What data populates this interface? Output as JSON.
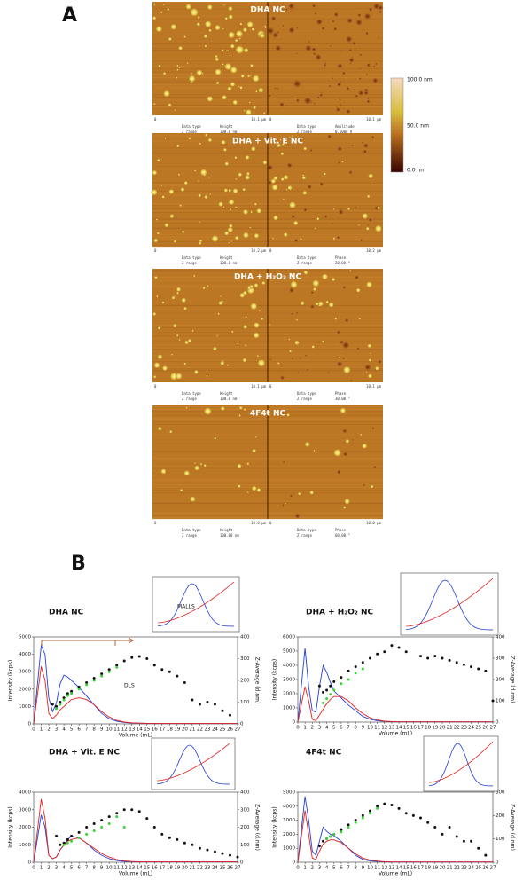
{
  "panel_a": {
    "label": "A",
    "axis_start": "0",
    "data_type_label": "Data type",
    "z_range_label": "Z range",
    "colorbar": {
      "max": "100.0 nm",
      "mid": "50.0 nm",
      "min": "0.0 nm"
    },
    "images": [
      {
        "title": "DHA NC",
        "left": {
          "extent": "10.1 µm",
          "data_type": "Height",
          "z_range": "100.0 nm"
        },
        "right": {
          "extent": "10.1 µm",
          "data_type": "Amplitude",
          "z_range": "0.5000 V"
        }
      },
      {
        "title": "DHA + Vit. E NC",
        "left": {
          "extent": "10.2 µm",
          "data_type": "Height",
          "z_range": "100.0 nm"
        },
        "right": {
          "extent": "10.2 µm",
          "data_type": "Phase",
          "z_range": "20.00 °"
        }
      },
      {
        "title": "DHA + H₂O₂ NC",
        "left": {
          "extent": "10.1 µm",
          "data_type": "Height",
          "z_range": "100.0 nm"
        },
        "right": {
          "extent": "10.1 µm",
          "data_type": "Phase",
          "z_range": "30.00 °"
        }
      },
      {
        "title": "4F4t NC",
        "left": {
          "extent": "10.0 µm",
          "data_type": "Height",
          "z_range": "100.00 nm"
        },
        "right": {
          "extent": "10.0 µm",
          "data_type": "Phase",
          "z_range": "60.00 °"
        }
      }
    ]
  },
  "panel_b": {
    "label": "B"
  },
  "chart_data": [
    {
      "type": "line",
      "title": "DHA NC",
      "x_label": "Volume (mL)",
      "y_label": "Intensity (kcps)",
      "y2_label": "Z-Average (d.nm)",
      "annotations": [
        "DLS",
        "MALLS"
      ],
      "xlim": [
        0,
        27
      ],
      "xticks": [
        0,
        1,
        2,
        3,
        4,
        5,
        6,
        7,
        8,
        9,
        10,
        11,
        12,
        13,
        14,
        15,
        16,
        17,
        18,
        19,
        20,
        21,
        22,
        23,
        24,
        25,
        26,
        27
      ],
      "ylim": [
        0,
        5000
      ],
      "yticks": [
        0,
        1000,
        2000,
        3000,
        4000,
        5000
      ],
      "y2lim": [
        0,
        400
      ],
      "y2ticks": [
        0,
        100,
        200,
        300,
        400
      ],
      "x": [
        0,
        1,
        1.5,
        2,
        2.5,
        3,
        3.5,
        4,
        4.5,
        5,
        6,
        7,
        8,
        9,
        10,
        11,
        12,
        13,
        14,
        15,
        16,
        17,
        18,
        19,
        20,
        21,
        22,
        23,
        24,
        25,
        26,
        27
      ],
      "series": [
        {
          "color": "#1f3fd8",
          "mode": "line",
          "values": [
            0,
            4500,
            4000,
            1500,
            700,
            1200,
            2300,
            2800,
            2700,
            2500,
            2100,
            1600,
            1100,
            600,
            300,
            150,
            80,
            50,
            40,
            30,
            20,
            20,
            20,
            20,
            20,
            20,
            20,
            20,
            20,
            20,
            20,
            20
          ]
        },
        {
          "color": "#e02020",
          "mode": "line",
          "values": [
            0,
            3300,
            2500,
            600,
            300,
            500,
            800,
            1000,
            1200,
            1400,
            1500,
            1400,
            1100,
            700,
            400,
            200,
            100,
            60,
            40,
            30,
            20,
            20,
            20,
            20,
            20,
            20,
            20,
            20,
            20,
            20,
            20,
            20
          ]
        },
        {
          "color": "#111111",
          "mode": "markers",
          "axis": "y2",
          "values": [
            null,
            null,
            null,
            null,
            90,
            80,
            100,
            120,
            140,
            150,
            170,
            190,
            210,
            230,
            250,
            270,
            290,
            305,
            310,
            300,
            270,
            250,
            240,
            220,
            190,
            110,
            90,
            100,
            90,
            60,
            40,
            null
          ]
        },
        {
          "color": "#33d633",
          "mode": "markers",
          "axis": "y2",
          "values": [
            null,
            null,
            null,
            null,
            null,
            70,
            90,
            110,
            130,
            140,
            160,
            180,
            200,
            220,
            240,
            260,
            null,
            null,
            null,
            null,
            null,
            null,
            null,
            null,
            null,
            null,
            null,
            null,
            null,
            null,
            null,
            null
          ]
        }
      ]
    },
    {
      "type": "line",
      "title": "DHA + H₂O₂ NC",
      "x_label": "Volume (mL)",
      "y_label": "Intensity (kcps)",
      "y2_label": "Z-Average (d.nm)",
      "xlim": [
        0,
        27
      ],
      "xticks": [
        0,
        1,
        2,
        3,
        4,
        5,
        6,
        7,
        8,
        9,
        10,
        11,
        12,
        13,
        14,
        15,
        16,
        17,
        18,
        19,
        20,
        21,
        22,
        23,
        24,
        25,
        26,
        27
      ],
      "ylim": [
        0,
        6000
      ],
      "yticks": [
        0,
        1000,
        2000,
        3000,
        4000,
        5000,
        6000
      ],
      "y2lim": [
        0,
        400
      ],
      "y2ticks": [
        0,
        100,
        200,
        300,
        400
      ],
      "x": [
        0,
        1,
        1.5,
        2,
        2.5,
        3,
        3.5,
        4,
        4.5,
        5,
        6,
        7,
        8,
        9,
        10,
        11,
        12,
        13,
        14,
        15,
        16,
        17,
        18,
        19,
        20,
        21,
        22,
        23,
        24,
        25,
        26,
        27
      ],
      "series": [
        {
          "color": "#1f3fd8",
          "mode": "line",
          "values": [
            0,
            5200,
            2500,
            800,
            700,
            2500,
            4000,
            3500,
            2800,
            2200,
            1700,
            1200,
            800,
            400,
            200,
            100,
            50,
            30,
            20,
            20,
            20,
            20,
            20,
            20,
            20,
            20,
            20,
            20,
            20,
            20,
            20,
            20
          ]
        },
        {
          "color": "#e02020",
          "mode": "line",
          "values": [
            0,
            2500,
            1500,
            200,
            100,
            500,
            900,
            1300,
            1600,
            1800,
            1800,
            1500,
            1000,
            600,
            300,
            150,
            60,
            30,
            20,
            20,
            20,
            20,
            20,
            20,
            20,
            20,
            20,
            20,
            20,
            20,
            20,
            20
          ]
        },
        {
          "color": "#111111",
          "mode": "markers",
          "axis": "y2",
          "values": [
            null,
            null,
            null,
            null,
            null,
            170,
            140,
            150,
            170,
            190,
            210,
            240,
            260,
            280,
            300,
            320,
            330,
            360,
            350,
            330,
            null,
            310,
            300,
            310,
            300,
            290,
            280,
            270,
            260,
            250,
            240,
            100
          ]
        },
        {
          "color": "#33d633",
          "mode": "markers",
          "axis": "y2",
          "values": [
            null,
            null,
            null,
            null,
            null,
            null,
            90,
            110,
            130,
            150,
            180,
            200,
            230,
            250,
            null,
            null,
            null,
            null,
            null,
            null,
            null,
            null,
            null,
            null,
            null,
            null,
            null,
            null,
            null,
            null,
            null,
            null
          ]
        }
      ]
    },
    {
      "type": "line",
      "title": "DHA + Vit. E NC",
      "x_label": "Volume (mL)",
      "y_label": "Intensity (kcps)",
      "y2_label": "Z-Average (d.nm)",
      "xlim": [
        0,
        27
      ],
      "xticks": [
        0,
        1,
        2,
        3,
        4,
        5,
        6,
        7,
        8,
        9,
        10,
        11,
        12,
        13,
        14,
        15,
        16,
        17,
        18,
        19,
        20,
        21,
        22,
        23,
        24,
        25,
        26,
        27
      ],
      "ylim": [
        0,
        4000
      ],
      "yticks": [
        0,
        1000,
        2000,
        3000,
        4000
      ],
      "y2lim": [
        0,
        400
      ],
      "y2ticks": [
        0,
        100,
        200,
        300,
        400
      ],
      "x": [
        0,
        1,
        1.5,
        2,
        2.5,
        3,
        3.5,
        4,
        4.5,
        5,
        6,
        7,
        8,
        9,
        10,
        11,
        12,
        13,
        14,
        15,
        16,
        17,
        18,
        19,
        20,
        21,
        22,
        23,
        24,
        25,
        26,
        27
      ],
      "series": [
        {
          "color": "#1f3fd8",
          "mode": "line",
          "values": [
            0,
            2700,
            2000,
            400,
            200,
            300,
            700,
            1000,
            1300,
            1500,
            1400,
            1100,
            700,
            400,
            200,
            100,
            50,
            30,
            20,
            20,
            20,
            20,
            20,
            20,
            20,
            20,
            20,
            20,
            20,
            20,
            20,
            20
          ]
        },
        {
          "color": "#e02020",
          "mode": "line",
          "values": [
            0,
            3600,
            2500,
            400,
            200,
            300,
            700,
            1000,
            1200,
            1300,
            1400,
            1100,
            800,
            500,
            300,
            150,
            80,
            40,
            20,
            20,
            20,
            20,
            20,
            20,
            20,
            20,
            20,
            20,
            20,
            20,
            20,
            20
          ]
        },
        {
          "color": "#111111",
          "mode": "markers",
          "axis": "y2",
          "values": [
            null,
            null,
            null,
            null,
            null,
            150,
            100,
            110,
            130,
            150,
            170,
            200,
            220,
            240,
            260,
            280,
            300,
            300,
            290,
            250,
            200,
            160,
            140,
            130,
            110,
            100,
            80,
            70,
            60,
            50,
            40,
            30
          ]
        },
        {
          "color": "#33d633",
          "mode": "markers",
          "axis": "y2",
          "values": [
            null,
            null,
            null,
            null,
            null,
            null,
            null,
            100,
            110,
            120,
            140,
            160,
            180,
            200,
            220,
            260,
            200,
            null,
            null,
            null,
            null,
            null,
            null,
            null,
            null,
            null,
            null,
            null,
            null,
            null,
            null,
            null
          ]
        }
      ]
    },
    {
      "type": "line",
      "title": "4F4t  NC",
      "x_label": "Volume (mL)",
      "y_label": "Intensity (kcps)",
      "y2_label": "Z-Average (d.nm)",
      "xlim": [
        0,
        27
      ],
      "xticks": [
        0,
        1,
        2,
        3,
        4,
        5,
        6,
        7,
        8,
        9,
        10,
        11,
        12,
        13,
        14,
        15,
        16,
        17,
        18,
        19,
        20,
        21,
        22,
        23,
        24,
        25,
        26,
        27
      ],
      "ylim": [
        0,
        5000
      ],
      "yticks": [
        0,
        1000,
        2000,
        3000,
        4000,
        5000
      ],
      "y2lim": [
        0,
        300
      ],
      "y2ticks": [
        0,
        100,
        200,
        300
      ],
      "x": [
        0,
        1,
        1.5,
        2,
        2.5,
        3,
        3.5,
        4,
        4.5,
        5,
        6,
        7,
        8,
        9,
        10,
        11,
        12,
        13,
        14,
        15,
        16,
        17,
        18,
        19,
        20,
        21,
        22,
        23,
        24,
        25,
        26,
        27
      ],
      "series": [
        {
          "color": "#1f3fd8",
          "mode": "line",
          "values": [
            0,
            4700,
            3000,
            800,
            500,
            1500,
            2500,
            2200,
            2000,
            1900,
            1500,
            1000,
            500,
            200,
            100,
            50,
            30,
            20,
            20,
            20,
            20,
            20,
            20,
            20,
            20,
            20,
            20,
            20,
            20,
            20,
            20,
            20
          ]
        },
        {
          "color": "#e02020",
          "mode": "line",
          "values": [
            0,
            3700,
            2000,
            300,
            200,
            800,
            1300,
            1500,
            1600,
            1600,
            1400,
            1000,
            600,
            300,
            150,
            80,
            40,
            20,
            20,
            20,
            20,
            20,
            20,
            20,
            20,
            20,
            20,
            20,
            20,
            20,
            20,
            20
          ]
        },
        {
          "color": "#111111",
          "mode": "markers",
          "axis": "y2",
          "values": [
            null,
            null,
            null,
            null,
            null,
            70,
            90,
            100,
            110,
            120,
            140,
            160,
            180,
            200,
            220,
            240,
            250,
            245,
            230,
            210,
            200,
            190,
            170,
            150,
            120,
            150,
            110,
            90,
            90,
            60,
            30,
            null
          ]
        },
        {
          "color": "#33d633",
          "mode": "markers",
          "axis": "y2",
          "values": [
            null,
            null,
            null,
            null,
            null,
            null,
            null,
            100,
            110,
            120,
            130,
            150,
            170,
            190,
            210,
            230,
            null,
            null,
            null,
            null,
            null,
            null,
            null,
            null,
            null,
            null,
            null,
            null,
            null,
            null,
            null,
            null
          ]
        }
      ]
    }
  ]
}
